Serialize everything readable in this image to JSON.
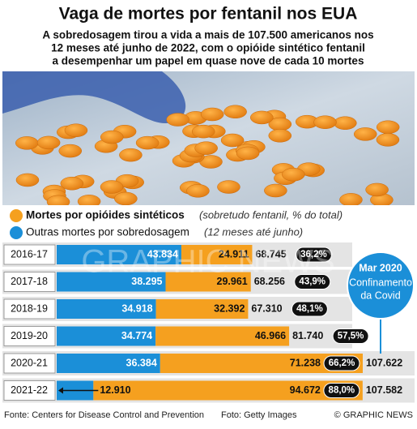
{
  "chart_data": {
    "type": "bar",
    "orientation": "horizontal",
    "stacked": true,
    "title": "Vaga de mortes por fentanil nos EUA",
    "subtitle": [
      "A sobredosagem tirou a vida a mais de 107.500 americanos nos",
      "12 meses até junho de 2022, com o opióide sintético fentanil",
      "a desempenhar um papel em quase nove de cada 10 mortes"
    ],
    "categories": [
      "2016-17",
      "2017-18",
      "2018-19",
      "2019-20",
      "2020-21",
      "2021-22"
    ],
    "series": [
      {
        "name": "Outras mortes por sobredosagem",
        "legend_note": "(12 meses até junho)",
        "color": "#1b8fd8",
        "values": [
          43834,
          38295,
          34918,
          34774,
          36384,
          12910
        ],
        "value_labels": [
          "43.834",
          "38.295",
          "34.918",
          "34.774",
          "36.384",
          "12.910"
        ]
      },
      {
        "name": "Mortes por opióides sintéticos",
        "legend_note": "(sobretudo fentanil, % do total)",
        "color": "#f5a01f",
        "values": [
          24911,
          29961,
          32392,
          46966,
          71238,
          94672
        ],
        "value_labels": [
          "24.911",
          "29.961",
          "32.392",
          "46.966",
          "71.238",
          "94.672"
        ]
      }
    ],
    "totals": {
      "values": [
        68745,
        68256,
        67310,
        81740,
        107622,
        107582
      ],
      "value_labels": [
        "68.745",
        "68.256",
        "67.310",
        "81.740",
        "107.622",
        "107.582"
      ]
    },
    "shares": {
      "values": [
        36.2,
        43.9,
        48.1,
        57.5,
        66.2,
        88.0
      ],
      "value_labels": [
        "36,2%",
        "43,9%",
        "48,1%",
        "57,5%",
        "66,2%",
        "88,0%"
      ]
    },
    "annotation": {
      "title": "Mar 2020",
      "text": [
        "Confinamento",
        "da Covid"
      ]
    },
    "watermark": "GRAPHIC NEWS",
    "source": "Fonte: Centers for Disease Control and Prevention",
    "photo_credit": "Foto: Getty Images",
    "copyright": "© GRAPHIC NEWS"
  }
}
